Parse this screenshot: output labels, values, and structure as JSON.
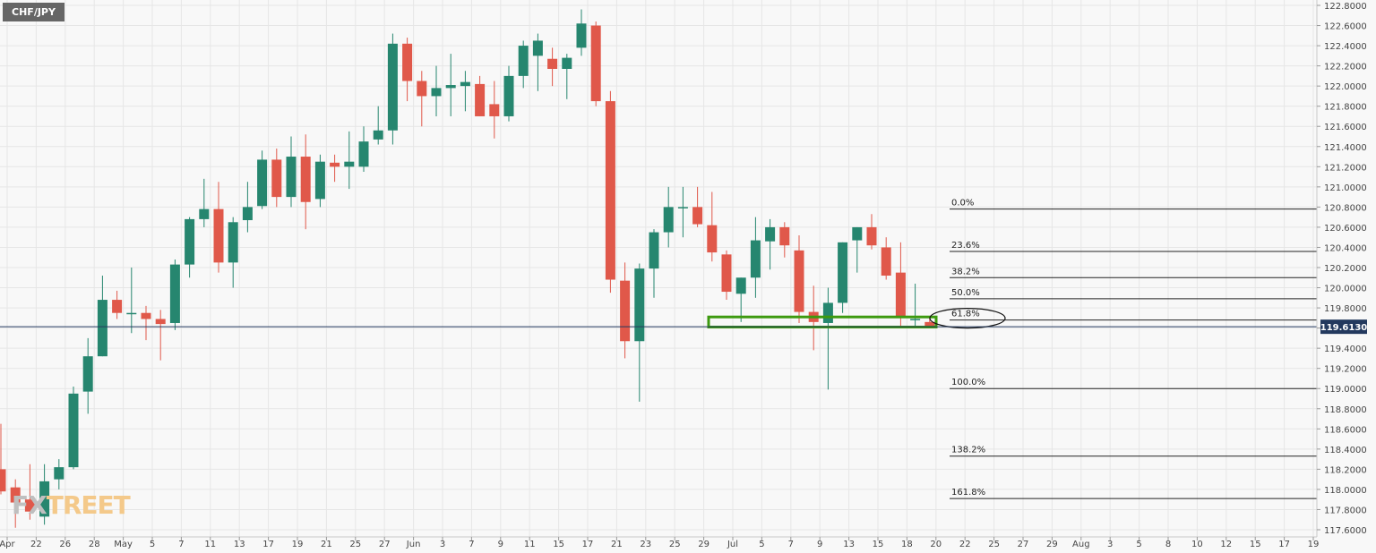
{
  "symbol": "CHF/JPY",
  "watermark": {
    "part1": "FX",
    "part2": "TREET"
  },
  "colors": {
    "up": "#26866f",
    "down": "#e0584a",
    "grid": "#e6e6e6",
    "price_line": "#23395e",
    "box": "#3d9a0f",
    "background": "#f8f8f8"
  },
  "chart_data": {
    "type": "candlestick",
    "title": "CHF/JPY",
    "ylim": [
      117.6,
      122.8
    ],
    "y_ticks": [
      "122.8000",
      "122.6000",
      "122.4000",
      "122.2000",
      "122.0000",
      "121.8000",
      "121.6000",
      "121.4000",
      "121.2000",
      "121.0000",
      "120.8000",
      "120.6000",
      "120.4000",
      "120.2000",
      "120.0000",
      "119.8000",
      "119.6000",
      "119.4000",
      "119.2000",
      "119.0000",
      "118.8000",
      "118.6000",
      "118.4000",
      "118.2000",
      "118.0000",
      "117.8000",
      "117.6000"
    ],
    "x_ticks": [
      "Apr",
      "22",
      "26",
      "28",
      "May",
      "5",
      "7",
      "11",
      "13",
      "17",
      "19",
      "21",
      "25",
      "27",
      "Jun",
      "3",
      "7",
      "9",
      "11",
      "15",
      "17",
      "21",
      "23",
      "25",
      "29",
      "Jul",
      "5",
      "7",
      "9",
      "13",
      "15",
      "18",
      "20",
      "22",
      "25",
      "27",
      "29",
      "Aug",
      "3",
      "5",
      "8",
      "10",
      "12",
      "15",
      "17",
      "19"
    ],
    "current_price": {
      "value": 119.613,
      "label": "119.6130"
    },
    "candles": [
      {
        "o": 118.2,
        "h": 118.65,
        "l": 117.95,
        "c": 117.98
      },
      {
        "o": 118.02,
        "h": 118.1,
        "l": 117.62,
        "c": 117.87
      },
      {
        "o": 117.9,
        "h": 118.25,
        "l": 117.7,
        "c": 117.78
      },
      {
        "o": 117.73,
        "h": 118.25,
        "l": 117.65,
        "c": 118.08
      },
      {
        "o": 118.1,
        "h": 118.3,
        "l": 118.0,
        "c": 118.22
      },
      {
        "o": 118.22,
        "h": 119.02,
        "l": 118.2,
        "c": 118.95
      },
      {
        "o": 118.97,
        "h": 119.5,
        "l": 118.75,
        "c": 119.32
      },
      {
        "o": 119.32,
        "h": 120.12,
        "l": 119.32,
        "c": 119.88
      },
      {
        "o": 119.88,
        "h": 119.97,
        "l": 119.69,
        "c": 119.75
      },
      {
        "o": 119.74,
        "h": 120.2,
        "l": 119.55,
        "c": 119.75
      },
      {
        "o": 119.75,
        "h": 119.82,
        "l": 119.48,
        "c": 119.69
      },
      {
        "o": 119.69,
        "h": 119.78,
        "l": 119.28,
        "c": 119.64
      },
      {
        "o": 119.65,
        "h": 120.28,
        "l": 119.58,
        "c": 120.23
      },
      {
        "o": 120.23,
        "h": 120.7,
        "l": 120.1,
        "c": 120.68
      },
      {
        "o": 120.68,
        "h": 121.08,
        "l": 120.6,
        "c": 120.78
      },
      {
        "o": 120.78,
        "h": 121.05,
        "l": 120.15,
        "c": 120.25
      },
      {
        "o": 120.25,
        "h": 120.7,
        "l": 120.0,
        "c": 120.65
      },
      {
        "o": 120.67,
        "h": 121.05,
        "l": 120.55,
        "c": 120.8
      },
      {
        "o": 120.81,
        "h": 121.36,
        "l": 120.78,
        "c": 121.27
      },
      {
        "o": 121.27,
        "h": 121.38,
        "l": 120.8,
        "c": 120.9
      },
      {
        "o": 120.9,
        "h": 121.5,
        "l": 120.8,
        "c": 121.3
      },
      {
        "o": 121.3,
        "h": 121.52,
        "l": 120.58,
        "c": 120.85
      },
      {
        "o": 120.88,
        "h": 121.32,
        "l": 120.8,
        "c": 121.25
      },
      {
        "o": 121.24,
        "h": 121.32,
        "l": 121.05,
        "c": 121.2
      },
      {
        "o": 121.2,
        "h": 121.55,
        "l": 120.98,
        "c": 121.25
      },
      {
        "o": 121.2,
        "h": 121.6,
        "l": 121.15,
        "c": 121.45
      },
      {
        "o": 121.47,
        "h": 121.8,
        "l": 121.42,
        "c": 121.56
      },
      {
        "o": 121.56,
        "h": 122.52,
        "l": 121.42,
        "c": 122.42
      },
      {
        "o": 122.42,
        "h": 122.48,
        "l": 121.85,
        "c": 122.05
      },
      {
        "o": 122.05,
        "h": 122.15,
        "l": 121.6,
        "c": 121.9
      },
      {
        "o": 121.9,
        "h": 122.2,
        "l": 121.7,
        "c": 121.98
      },
      {
        "o": 121.98,
        "h": 122.32,
        "l": 121.7,
        "c": 122.01
      },
      {
        "o": 122.0,
        "h": 122.15,
        "l": 121.75,
        "c": 122.04
      },
      {
        "o": 122.02,
        "h": 122.1,
        "l": 121.7,
        "c": 121.7
      },
      {
        "o": 121.82,
        "h": 122.05,
        "l": 121.48,
        "c": 121.7
      },
      {
        "o": 121.7,
        "h": 122.2,
        "l": 121.65,
        "c": 122.1
      },
      {
        "o": 122.1,
        "h": 122.45,
        "l": 121.98,
        "c": 122.4
      },
      {
        "o": 122.3,
        "h": 122.52,
        "l": 121.95,
        "c": 122.45
      },
      {
        "o": 122.27,
        "h": 122.38,
        "l": 122.0,
        "c": 122.17
      },
      {
        "o": 122.17,
        "h": 122.32,
        "l": 121.87,
        "c": 122.28
      },
      {
        "o": 122.38,
        "h": 122.76,
        "l": 122.3,
        "c": 122.62
      },
      {
        "o": 122.6,
        "h": 122.64,
        "l": 121.8,
        "c": 121.85
      },
      {
        "o": 121.85,
        "h": 121.95,
        "l": 119.95,
        "c": 120.08
      },
      {
        "o": 120.07,
        "h": 120.25,
        "l": 119.3,
        "c": 119.47
      },
      {
        "o": 119.47,
        "h": 120.24,
        "l": 118.87,
        "c": 120.19
      },
      {
        "o": 120.19,
        "h": 120.58,
        "l": 119.9,
        "c": 120.55
      },
      {
        "o": 120.55,
        "h": 121.0,
        "l": 120.4,
        "c": 120.8
      },
      {
        "o": 120.8,
        "h": 121.0,
        "l": 120.5,
        "c": 120.8
      },
      {
        "o": 120.8,
        "h": 121.0,
        "l": 120.6,
        "c": 120.63
      },
      {
        "o": 120.62,
        "h": 120.95,
        "l": 120.26,
        "c": 120.35
      },
      {
        "o": 120.33,
        "h": 120.37,
        "l": 119.88,
        "c": 119.96
      },
      {
        "o": 119.94,
        "h": 120.1,
        "l": 119.66,
        "c": 120.1
      },
      {
        "o": 120.1,
        "h": 120.7,
        "l": 119.9,
        "c": 120.47
      },
      {
        "o": 120.46,
        "h": 120.68,
        "l": 120.18,
        "c": 120.6
      },
      {
        "o": 120.6,
        "h": 120.65,
        "l": 120.3,
        "c": 120.42
      },
      {
        "o": 120.37,
        "h": 120.52,
        "l": 119.65,
        "c": 119.76
      },
      {
        "o": 119.76,
        "h": 120.02,
        "l": 119.38,
        "c": 119.66
      },
      {
        "o": 119.65,
        "h": 120.0,
        "l": 118.99,
        "c": 119.85
      },
      {
        "o": 119.85,
        "h": 120.45,
        "l": 119.75,
        "c": 120.45
      },
      {
        "o": 120.47,
        "h": 120.6,
        "l": 120.15,
        "c": 120.6
      },
      {
        "o": 120.6,
        "h": 120.73,
        "l": 120.38,
        "c": 120.42
      },
      {
        "o": 120.4,
        "h": 120.5,
        "l": 120.08,
        "c": 120.12
      },
      {
        "o": 120.15,
        "h": 120.45,
        "l": 119.62,
        "c": 119.7
      },
      {
        "o": 119.69,
        "h": 120.04,
        "l": 119.62,
        "c": 119.69
      },
      {
        "o": 119.66,
        "h": 119.7,
        "l": 119.61,
        "c": 119.61
      }
    ],
    "fibonacci": [
      {
        "label": "0.0%",
        "price": 120.78
      },
      {
        "label": "23.6%",
        "price": 120.36
      },
      {
        "label": "38.2%",
        "price": 120.1
      },
      {
        "label": "50.0%",
        "price": 119.89
      },
      {
        "label": "61.8%",
        "price": 119.68
      },
      {
        "label": "100.0%",
        "price": 119.0
      },
      {
        "label": "138.2%",
        "price": 118.33
      },
      {
        "label": "161.8%",
        "price": 117.91
      }
    ],
    "support_zone": {
      "low": 119.61,
      "high": 119.71
    },
    "highlight": {
      "level": "61.8%"
    }
  }
}
